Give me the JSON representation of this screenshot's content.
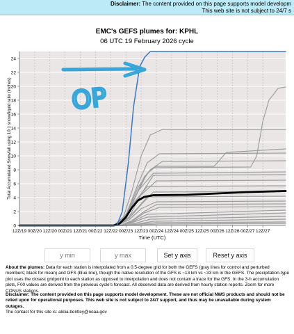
{
  "banner": {
    "label": "Disclaimer:",
    "line1": "The content provided on this page supports model developm",
    "line2": "This web site is not subject to 24/7 s"
  },
  "title": "EMC's GEFS plumes for: KPHL",
  "subtitle": "06 UTC 19 February 2026 cycle",
  "controls": {
    "ymin_placeholder": "y min",
    "ymax_placeholder": "y max",
    "set_label": "Set y axis",
    "reset_label": "Reset y axis"
  },
  "about": {
    "label": "About the plumes:",
    "text": "Data for each station is interpolated from a 0.5-degree grid for both the GEFS (gray lines for control and perturbed members; black for mean) and GFS (blue line), though the native resolution of the GFS is ~13 km vs ~33 km in the GEFS. The precipitation-type plot uses the closest gridpoint to each station as opposed to interpolation and does not contain a trace for the GFS. In the 3-h accumulation plots, F00 values are derived from the previous cycle's forecast. All observed data are derived from hourly station reports. Zoom for more CONUS stations."
  },
  "disclaimer": {
    "label": "Disclaimer:",
    "text": "The content provided on this page supports model development. These are not official NWS products and should not be relied upon for operational purposes. This web site is not subject to 24/7 support, and thus may be unavailable during system outages."
  },
  "contact": "The contact for this site is: alicia.bentley@noaa.gov",
  "annotation": {
    "text": "OP",
    "color": "#37a6d8"
  },
  "chart_data": {
    "type": "line",
    "xlabel": "Time (UTC)",
    "ylabel": "Total Accumulated Snowfall using 10:1 snow/liquid ratio (inches)",
    "ylim": [
      0,
      25
    ],
    "yticks": [
      0,
      2,
      4,
      6,
      8,
      10,
      12,
      14,
      16,
      18,
      20,
      22,
      24
    ],
    "xlim": [
      0,
      8.75
    ],
    "xticks": [
      {
        "x": 0,
        "label": "12Z/19"
      },
      {
        "x": 0.5,
        "label": "00Z/20"
      },
      {
        "x": 1,
        "label": "12Z/20"
      },
      {
        "x": 1.5,
        "label": "00Z/21"
      },
      {
        "x": 2,
        "label": "12Z/21"
      },
      {
        "x": 2.5,
        "label": "00Z/22"
      },
      {
        "x": 3,
        "label": "12Z/22"
      },
      {
        "x": 3.5,
        "label": "00Z/23"
      },
      {
        "x": 4,
        "label": "12Z/23"
      },
      {
        "x": 4.5,
        "label": "00Z/24"
      },
      {
        "x": 5,
        "label": "12Z/24"
      },
      {
        "x": 5.5,
        "label": "00Z/25"
      },
      {
        "x": 6,
        "label": "12Z/25"
      },
      {
        "x": 6.5,
        "label": "00Z/26"
      },
      {
        "x": 7,
        "label": "12Z/26"
      },
      {
        "x": 7.5,
        "label": "00Z/27"
      },
      {
        "x": 8,
        "label": "12Z/27"
      }
    ],
    "grid": true,
    "colors": {
      "members": "#9e9e9e",
      "mean": "#000000",
      "gfs": "#3a78c2",
      "background": "#eae6e6"
    },
    "series": [
      {
        "name": "GFS",
        "role": "gfs",
        "x": [
          0,
          3.2,
          3.38,
          3.58,
          3.75,
          3.95,
          4.12,
          4.3,
          5.3,
          8.75
        ],
        "y": [
          0,
          0,
          2,
          9,
          17,
          22.8,
          24.2,
          25,
          25,
          25
        ]
      },
      {
        "name": "GEFS mean",
        "role": "mean",
        "x": [
          0,
          3.1,
          3.3,
          3.5,
          3.7,
          3.9,
          4.1,
          4.4,
          5.5,
          6.5,
          7.5,
          8.75
        ],
        "y": [
          0,
          0,
          0.3,
          1.2,
          2.6,
          3.6,
          4.1,
          4.35,
          4.4,
          4.6,
          4.8,
          4.95
        ]
      },
      {
        "role": "member",
        "x": [
          0,
          3.1,
          3.4,
          3.7,
          4.0,
          4.3,
          4.7,
          8.75
        ],
        "y": [
          0,
          0,
          1,
          5,
          10,
          13,
          13.8,
          13.8
        ]
      },
      {
        "role": "member",
        "x": [
          0,
          3.1,
          3.5,
          3.8,
          4.1,
          4.4,
          7.6,
          7.8,
          8.0,
          8.2,
          8.5,
          8.75
        ],
        "y": [
          0,
          0,
          1,
          4,
          7,
          8.3,
          8.4,
          10,
          15,
          18,
          19.7,
          19.9
        ]
      },
      {
        "role": "member",
        "x": [
          0,
          3.2,
          3.5,
          3.8,
          4.2,
          4.5,
          6.4,
          6.8,
          8.75
        ],
        "y": [
          0,
          0,
          1,
          4,
          7.5,
          8.5,
          8.5,
          10.5,
          11
        ]
      },
      {
        "role": "member",
        "x": [
          0,
          3.1,
          3.5,
          3.9,
          4.2,
          4.6,
          8.75
        ],
        "y": [
          0,
          0,
          1.5,
          6,
          9,
          10.3,
          10.4
        ]
      },
      {
        "role": "member",
        "x": [
          0,
          3.1,
          3.5,
          3.9,
          4.3,
          4.7,
          8.75
        ],
        "y": [
          0,
          0,
          1.4,
          5.5,
          8,
          9.2,
          9.3
        ]
      },
      {
        "role": "member",
        "x": [
          0,
          3.1,
          3.5,
          3.9,
          4.4,
          8.75
        ],
        "y": [
          0,
          0,
          1.3,
          5,
          7.5,
          7.7
        ]
      },
      {
        "role": "member",
        "x": [
          0,
          3.2,
          3.6,
          4.0,
          4.4,
          8.75
        ],
        "y": [
          0,
          0,
          1.2,
          4.5,
          7.2,
          7.3
        ]
      },
      {
        "role": "member",
        "x": [
          0,
          3.1,
          3.5,
          3.9,
          4.5,
          8.75
        ],
        "y": [
          0,
          0,
          1,
          4,
          6.4,
          6.5
        ]
      },
      {
        "role": "member",
        "x": [
          0,
          3.1,
          3.4,
          3.8,
          4.2,
          8.75
        ],
        "y": [
          0,
          0,
          1,
          3.5,
          5.6,
          5.7
        ]
      },
      {
        "role": "member",
        "x": [
          0,
          3.2,
          3.6,
          4.0,
          4.4,
          8.75
        ],
        "y": [
          0,
          0,
          1,
          3,
          4.8,
          4.9
        ]
      },
      {
        "role": "member",
        "x": [
          0,
          3.2,
          3.5,
          3.9,
          4.2,
          8.75
        ],
        "y": [
          0,
          0,
          0.8,
          2.6,
          4.1,
          4.2
        ]
      },
      {
        "role": "member",
        "x": [
          0,
          3.2,
          3.6,
          4.0,
          4.5,
          8.75
        ],
        "y": [
          0,
          0,
          0.8,
          2.4,
          3.4,
          3.5
        ]
      },
      {
        "role": "member",
        "x": [
          0,
          3.3,
          3.7,
          4.1,
          4.5,
          8.75
        ],
        "y": [
          0,
          0,
          0.7,
          2,
          3,
          3.1
        ]
      },
      {
        "role": "member",
        "x": [
          0,
          3.3,
          3.7,
          4.1,
          4.6,
          8.75
        ],
        "y": [
          0,
          0,
          0.6,
          1.8,
          2.6,
          2.7
        ]
      },
      {
        "role": "member",
        "x": [
          0,
          3.3,
          3.7,
          4.2,
          8.75
        ],
        "y": [
          0,
          0,
          0.5,
          1.6,
          2.2
        ]
      },
      {
        "role": "member",
        "x": [
          0,
          3.3,
          3.7,
          4.2,
          8.75
        ],
        "y": [
          0,
          0,
          0.4,
          1.2,
          1.8
        ]
      },
      {
        "role": "member",
        "x": [
          0,
          3.4,
          3.8,
          4.3,
          8.75
        ],
        "y": [
          0,
          0,
          0.3,
          0.9,
          1.3
        ]
      },
      {
        "role": "member",
        "x": [
          0,
          3.4,
          3.9,
          4.4,
          8.75
        ],
        "y": [
          0,
          0,
          0.2,
          0.6,
          0.9
        ]
      },
      {
        "role": "member",
        "x": [
          0,
          3.4,
          3.9,
          4.5,
          8.75
        ],
        "y": [
          0,
          0,
          0.2,
          0.4,
          0.5
        ]
      },
      {
        "role": "member",
        "x": [
          0,
          3.5,
          4.0,
          4.5,
          8.75
        ],
        "y": [
          0,
          0,
          0.1,
          0.2,
          0.3
        ]
      }
    ]
  }
}
